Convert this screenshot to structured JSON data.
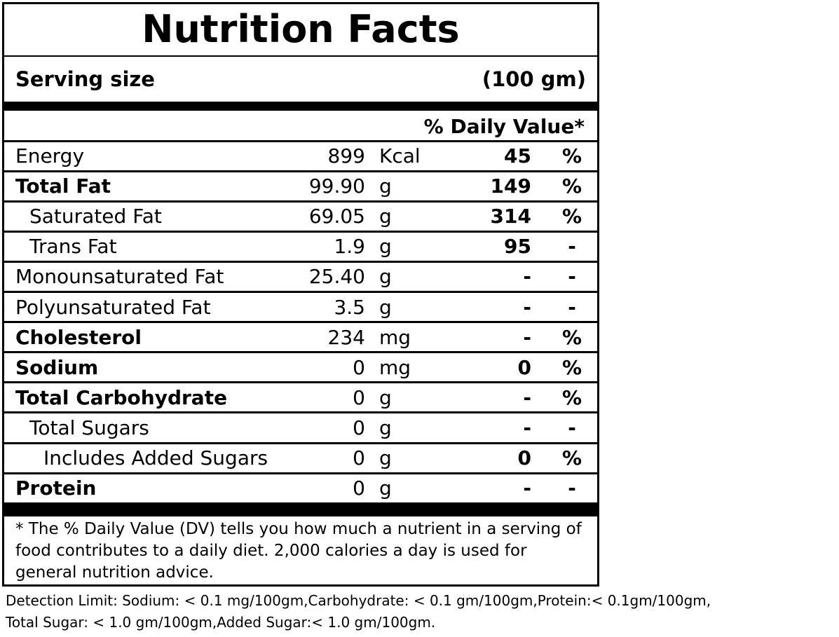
{
  "title": "Nutrition Facts",
  "serving": {
    "label": "Serving size",
    "value": "(100 gm)"
  },
  "daily_value_header": "% Daily Value*",
  "rows": [
    {
      "name": "Energy",
      "amount": "899",
      "unit": "Kcal",
      "dv": "45",
      "pct": "%"
    },
    {
      "name": "Total Fat",
      "amount": "99.90",
      "unit": "g",
      "dv": "149",
      "pct": "%"
    },
    {
      "name": "Saturated Fat",
      "amount": "69.05",
      "unit": "g",
      "dv": "314",
      "pct": "%"
    },
    {
      "name": "Trans Fat",
      "amount": "1.9",
      "unit": "g",
      "dv": "95",
      "pct": "-"
    },
    {
      "name": "Monounsaturated Fat",
      "amount": "25.40",
      "unit": "g",
      "dv": "-",
      "pct": "-"
    },
    {
      "name": "Polyunsaturated Fat",
      "amount": "3.5",
      "unit": "g",
      "dv": "-",
      "pct": "-"
    },
    {
      "name": "Cholesterol",
      "amount": "234",
      "unit": "mg",
      "dv": "-",
      "pct": "%"
    },
    {
      "name": "Sodium",
      "amount": "0",
      "unit": "mg",
      "dv": "0",
      "pct": "%"
    },
    {
      "name": "Total Carbohydrate",
      "amount": "0",
      "unit": "g",
      "dv": "-",
      "pct": "%"
    },
    {
      "name": "Total Sugars",
      "amount": "0",
      "unit": "g",
      "dv": "-",
      "pct": "-"
    },
    {
      "name": "Includes Added Sugars",
      "amount": "0",
      "unit": "g",
      "dv": "0",
      "pct": "%"
    },
    {
      "name": "Protein",
      "amount": "0",
      "unit": "g",
      "dv": "-",
      "pct": "-"
    }
  ],
  "footnote": "* The % Daily Value (DV) tells you how much a nutrient in a serving of food contributes to a daily diet. 2,000 calories a day is used for general nutrition advice.",
  "detection_limit": [
    "Detection Limit: Sodium: < 0.1 mg/100gm,Carbohydrate: < 0.1 gm/100gm,Protein:< 0.1gm/100gm,",
    "Total Sugar: < 1.0 gm/100gm,Added Sugar:< 1.0 gm/100gm."
  ]
}
